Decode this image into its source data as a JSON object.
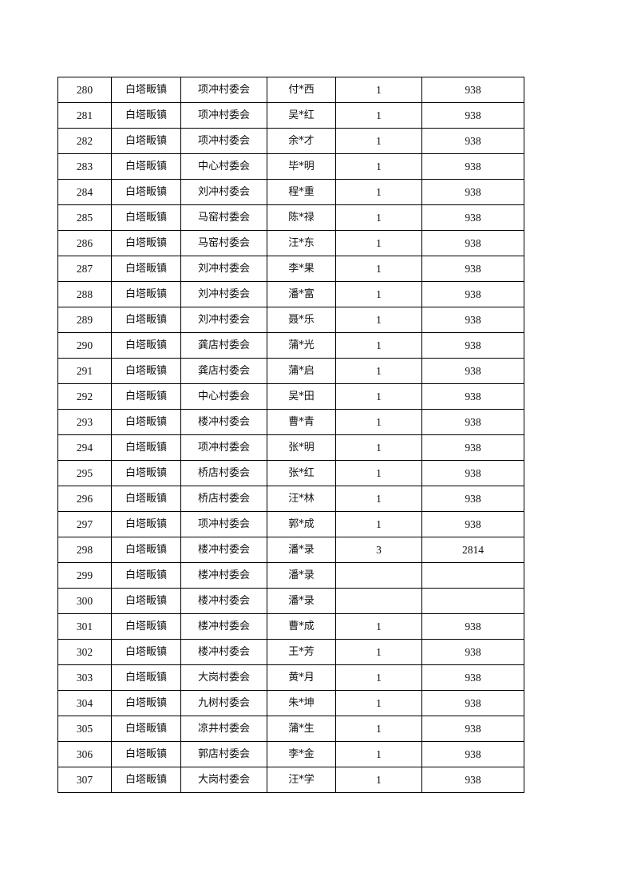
{
  "table": {
    "rows": [
      [
        "280",
        "白塔畈镇",
        "项冲村委会",
        "付*西",
        "1",
        "938"
      ],
      [
        "281",
        "白塔畈镇",
        "项冲村委会",
        "吴*红",
        "1",
        "938"
      ],
      [
        "282",
        "白塔畈镇",
        "项冲村委会",
        "余*才",
        "1",
        "938"
      ],
      [
        "283",
        "白塔畈镇",
        "中心村委会",
        "毕*明",
        "1",
        "938"
      ],
      [
        "284",
        "白塔畈镇",
        "刘冲村委会",
        "程*重",
        "1",
        "938"
      ],
      [
        "285",
        "白塔畈镇",
        "马窑村委会",
        "陈*禄",
        "1",
        "938"
      ],
      [
        "286",
        "白塔畈镇",
        "马窑村委会",
        "汪*东",
        "1",
        "938"
      ],
      [
        "287",
        "白塔畈镇",
        "刘冲村委会",
        "李*果",
        "1",
        "938"
      ],
      [
        "288",
        "白塔畈镇",
        "刘冲村委会",
        "潘*富",
        "1",
        "938"
      ],
      [
        "289",
        "白塔畈镇",
        "刘冲村委会",
        "聂*乐",
        "1",
        "938"
      ],
      [
        "290",
        "白塔畈镇",
        "龚店村委会",
        "蒲*光",
        "1",
        "938"
      ],
      [
        "291",
        "白塔畈镇",
        "龚店村委会",
        "蒲*启",
        "1",
        "938"
      ],
      [
        "292",
        "白塔畈镇",
        "中心村委会",
        "吴*田",
        "1",
        "938"
      ],
      [
        "293",
        "白塔畈镇",
        "楼冲村委会",
        "曹*青",
        "1",
        "938"
      ],
      [
        "294",
        "白塔畈镇",
        "项冲村委会",
        "张*明",
        "1",
        "938"
      ],
      [
        "295",
        "白塔畈镇",
        "桥店村委会",
        "张*红",
        "1",
        "938"
      ],
      [
        "296",
        "白塔畈镇",
        "桥店村委会",
        "汪*林",
        "1",
        "938"
      ],
      [
        "297",
        "白塔畈镇",
        "项冲村委会",
        "郭*成",
        "1",
        "938"
      ],
      [
        "298",
        "白塔畈镇",
        "楼冲村委会",
        "潘*录",
        "3",
        "2814"
      ],
      [
        "299",
        "白塔畈镇",
        "楼冲村委会",
        "潘*录",
        "",
        ""
      ],
      [
        "300",
        "白塔畈镇",
        "楼冲村委会",
        "潘*录",
        "",
        ""
      ],
      [
        "301",
        "白塔畈镇",
        "楼冲村委会",
        "曹*成",
        "1",
        "938"
      ],
      [
        "302",
        "白塔畈镇",
        "楼冲村委会",
        "王*芳",
        "1",
        "938"
      ],
      [
        "303",
        "白塔畈镇",
        "大岗村委会",
        "黄*月",
        "1",
        "938"
      ],
      [
        "304",
        "白塔畈镇",
        "九树村委会",
        "朱*坤",
        "1",
        "938"
      ],
      [
        "305",
        "白塔畈镇",
        "凉井村委会",
        "蒲*生",
        "1",
        "938"
      ],
      [
        "306",
        "白塔畈镇",
        "郭店村委会",
        "李*金",
        "1",
        "938"
      ],
      [
        "307",
        "白塔畈镇",
        "大岗村委会",
        "汪*学",
        "1",
        "938"
      ]
    ]
  }
}
